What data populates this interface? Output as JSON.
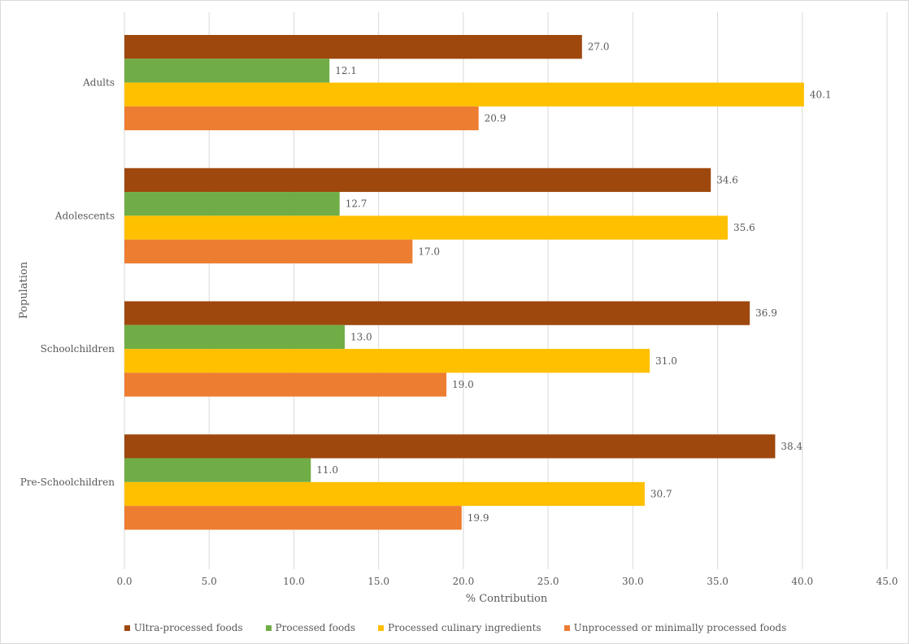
{
  "chart_data": {
    "type": "bar",
    "orientation": "horizontal",
    "title": "",
    "xlabel": "% Contribution",
    "ylabel": "Population",
    "xlim": [
      0,
      45
    ],
    "x_ticks": [
      "0.0",
      "5.0",
      "10.0",
      "15.0",
      "20.0",
      "25.0",
      "30.0",
      "35.0",
      "40.0",
      "45.0"
    ],
    "grid": true,
    "legend_position": "bottom",
    "categories": [
      "Adults",
      "Adolescents",
      "Schoolchildren",
      "Pre-Schoolchildren"
    ],
    "series": [
      {
        "name": "Ultra-processed foods",
        "color": "#9E480E",
        "values": [
          27.0,
          34.6,
          36.9,
          38.4
        ],
        "labels": [
          "27.0",
          "34.6",
          "36.9",
          "38.4"
        ]
      },
      {
        "name": "Processed foods",
        "color": "#70AD47",
        "values": [
          12.1,
          12.7,
          13.0,
          11.0
        ],
        "labels": [
          "12.1",
          "12.7",
          "13.0",
          "11.0"
        ]
      },
      {
        "name": "Processed culinary ingredients",
        "color": "#FFC000",
        "values": [
          40.1,
          35.6,
          31.0,
          30.7
        ],
        "labels": [
          "40.1",
          "35.6",
          "31.0",
          "30.7"
        ]
      },
      {
        "name": "Unprocessed or minimally processed foods",
        "color": "#ED7D31",
        "values": [
          20.9,
          17.0,
          19.0,
          19.9
        ],
        "labels": [
          "20.9",
          "17.0",
          "19.0",
          "19.9"
        ]
      }
    ]
  }
}
